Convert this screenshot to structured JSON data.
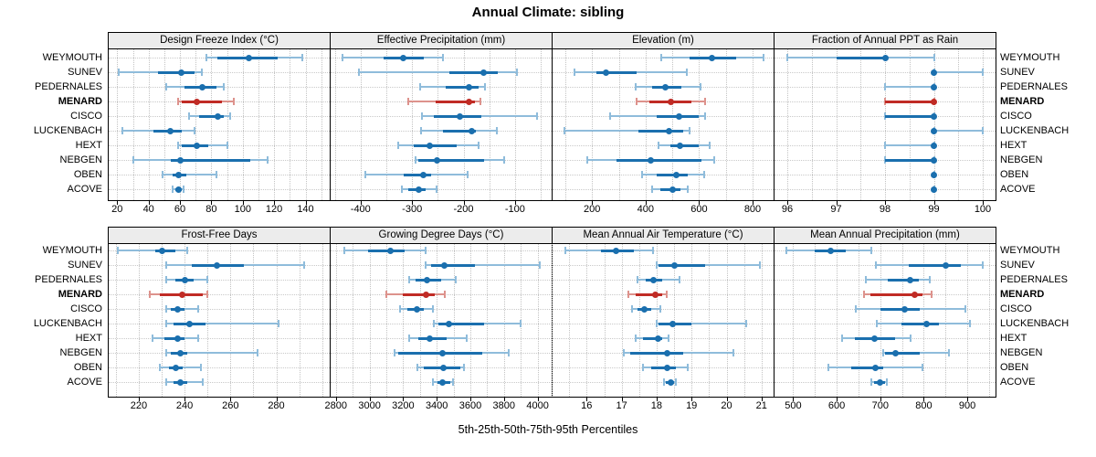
{
  "title": "Annual Climate: sibling",
  "caption": "5th-25th-50th-75th-95th Percentiles",
  "percentile_levels": [
    5,
    25,
    50,
    75,
    95
  ],
  "stations": [
    "WEYMOUTH",
    "SUNEV",
    "PEDERNALES",
    "MENARD",
    "CISCO",
    "LUCKENBACH",
    "HEXT",
    "NEBGEN",
    "OBEN",
    "ACOVE"
  ],
  "highlight_station": "MENARD",
  "colors": {
    "series": "#1a6fae",
    "series_light": "#8fbcdb",
    "highlight": "#c02b25",
    "highlight_light": "#dd928c",
    "grid": "#c8c8c8",
    "header_bg": "#ececec",
    "border": "#000000"
  },
  "chart_data": [
    {
      "type": "scatter",
      "subtype": "percentile-interval",
      "title": "Design Freeze Index (°C)",
      "grid_row": 0,
      "grid_col": 0,
      "ticks": [
        20,
        40,
        60,
        80,
        100,
        120,
        140
      ],
      "domain": [
        14,
        156
      ],
      "minor_step": 10,
      "rows": [
        [
          77,
          84,
          104,
          122,
          138
        ],
        [
          21,
          46,
          61,
          69,
          74
        ],
        [
          51,
          63,
          74,
          83,
          88
        ],
        [
          59,
          61,
          71,
          87,
          94
        ],
        [
          66,
          72,
          84,
          88,
          92
        ],
        [
          23,
          43,
          54,
          61,
          69
        ],
        [
          59,
          61,
          71,
          78,
          90
        ],
        [
          30,
          54,
          60,
          105,
          116
        ],
        [
          49,
          55,
          59,
          64,
          83
        ],
        [
          55,
          57,
          59,
          61,
          62
        ]
      ]
    },
    {
      "type": "scatter",
      "subtype": "percentile-interval",
      "title": "Effective Precipitation (mm)",
      "grid_row": 0,
      "grid_col": 1,
      "ticks": [
        -400,
        -300,
        -200,
        -100
      ],
      "domain": [
        -460,
        -27
      ],
      "minor_step": 50,
      "rows": [
        [
          -435,
          -355,
          -317,
          -278,
          -240
        ],
        [
          -403,
          -228,
          -161,
          -133,
          -96
        ],
        [
          -284,
          -234,
          -190,
          -171,
          -158
        ],
        [
          -307,
          -254,
          -190,
          -177,
          -167
        ],
        [
          -281,
          -257,
          -208,
          -165,
          -57
        ],
        [
          -282,
          -240,
          -185,
          -176,
          -136
        ],
        [
          -327,
          -296,
          -265,
          -213,
          -171
        ],
        [
          -294,
          -288,
          -252,
          -160,
          -122
        ],
        [
          -391,
          -317,
          -279,
          -263,
          -192
        ],
        [
          -320,
          -307,
          -287,
          -273,
          -253
        ]
      ]
    },
    {
      "type": "scatter",
      "subtype": "percentile-interval",
      "title": "Elevation (m)",
      "grid_row": 0,
      "grid_col": 2,
      "ticks": [
        200,
        400,
        600,
        800
      ],
      "domain": [
        49,
        882
      ],
      "minor_step": 100,
      "rows": [
        [
          458,
          565,
          648,
          740,
          840
        ],
        [
          134,
          215,
          252,
          368,
          553
        ],
        [
          362,
          425,
          474,
          533,
          605
        ],
        [
          368,
          414,
          495,
          570,
          622
        ],
        [
          269,
          443,
          524,
          599,
          624
        ],
        [
          95,
          373,
          487,
          541,
          566
        ],
        [
          449,
          492,
          529,
          599,
          639
        ],
        [
          183,
          292,
          420,
          610,
          657
        ],
        [
          388,
          443,
          516,
          558,
          620
        ],
        [
          425,
          454,
          500,
          529,
          558
        ]
      ]
    },
    {
      "type": "scatter",
      "subtype": "percentile-interval",
      "title": "Fraction of Annual PPT as Rain",
      "grid_row": 0,
      "grid_col": 3,
      "ticks": [
        96,
        97,
        98,
        99,
        100
      ],
      "domain": [
        95.72,
        100.28
      ],
      "minor_step": 0.5,
      "rows": [
        [
          96,
          97,
          98,
          98,
          99
        ],
        [
          99,
          99,
          99,
          99,
          100
        ],
        [
          98,
          99,
          99,
          99,
          99
        ],
        [
          98,
          98,
          99,
          99,
          99
        ],
        [
          98,
          98,
          99,
          99,
          99
        ],
        [
          99,
          99,
          99,
          99,
          100
        ],
        [
          98,
          99,
          99,
          99,
          99
        ],
        [
          98,
          98,
          99,
          99,
          99
        ],
        [
          99,
          99,
          99,
          99,
          99
        ],
        [
          99,
          99,
          99,
          99,
          99
        ]
      ]
    },
    {
      "type": "scatter",
      "subtype": "percentile-interval",
      "title": "Frost-Free Days",
      "grid_row": 1,
      "grid_col": 0,
      "ticks": [
        220,
        240,
        260,
        280
      ],
      "domain": [
        206.5,
        303.7
      ],
      "minor_step": 10,
      "rows": [
        [
          211,
          227,
          230,
          236,
          241
        ],
        [
          232,
          243,
          254,
          266,
          292
        ],
        [
          232,
          236,
          240,
          244,
          250
        ],
        [
          225,
          229,
          239,
          248,
          250
        ],
        [
          232,
          234,
          237,
          240,
          246
        ],
        [
          232,
          235,
          242,
          249,
          281
        ],
        [
          226,
          231,
          237,
          240,
          246
        ],
        [
          232,
          234,
          238,
          241,
          272
        ],
        [
          229,
          233,
          236,
          239,
          247
        ],
        [
          232,
          235,
          238,
          241,
          248
        ]
      ]
    },
    {
      "type": "scatter",
      "subtype": "percentile-interval",
      "title": "Growing Degree Days (°C)",
      "grid_row": 1,
      "grid_col": 1,
      "ticks": [
        2800,
        3000,
        3200,
        3400,
        3600,
        3800,
        4000
      ],
      "domain": [
        2763,
        4089
      ],
      "minor_step": 100,
      "rows": [
        [
          2850,
          2990,
          3125,
          3210,
          3335
        ],
        [
          3335,
          3365,
          3445,
          3625,
          4015
        ],
        [
          3235,
          3275,
          3340,
          3425,
          3510
        ],
        [
          3100,
          3200,
          3335,
          3390,
          3445
        ],
        [
          3180,
          3225,
          3280,
          3325,
          3375
        ],
        [
          3380,
          3410,
          3470,
          3680,
          3900
        ],
        [
          3235,
          3290,
          3360,
          3460,
          3580
        ],
        [
          3150,
          3170,
          3435,
          3670,
          3830
        ],
        [
          3285,
          3320,
          3440,
          3540,
          3560
        ],
        [
          3375,
          3405,
          3435,
          3480,
          3495
        ]
      ]
    },
    {
      "type": "scatter",
      "subtype": "percentile-interval",
      "title": "Mean Annual Air Temperature (°C)",
      "grid_row": 1,
      "grid_col": 2,
      "ticks": [
        16,
        17,
        18,
        19,
        20,
        21
      ],
      "domain": [
        15.0,
        21.37
      ],
      "minor_step": 0.5,
      "rows": [
        [
          15.4,
          16.4,
          16.85,
          17.35,
          17.9
        ],
        [
          18.0,
          18.05,
          18.5,
          19.4,
          20.95
        ],
        [
          17.45,
          17.7,
          17.9,
          18.15,
          18.65
        ],
        [
          17.2,
          17.4,
          17.95,
          18.15,
          18.3
        ],
        [
          17.3,
          17.45,
          17.65,
          17.85,
          18.1
        ],
        [
          18.0,
          18.05,
          18.45,
          19.0,
          20.55
        ],
        [
          17.4,
          17.6,
          18.05,
          18.15,
          18.35
        ],
        [
          17.05,
          17.25,
          18.3,
          18.75,
          20.2
        ],
        [
          17.6,
          17.85,
          18.3,
          18.55,
          18.9
        ],
        [
          18.2,
          18.25,
          18.4,
          18.5,
          18.55
        ]
      ]
    },
    {
      "type": "scatter",
      "subtype": "percentile-interval",
      "title": "Mean Annual Precipitation (mm)",
      "grid_row": 1,
      "grid_col": 3,
      "ticks": [
        500,
        600,
        700,
        800,
        900
      ],
      "domain": [
        455,
        967
      ],
      "minor_step": 50,
      "rows": [
        [
          485,
          550,
          586,
          620,
          680
        ],
        [
          690,
          765,
          850,
          885,
          935
        ],
        [
          666,
          718,
          769,
          788,
          814
        ],
        [
          662,
          678,
          780,
          798,
          818
        ],
        [
          644,
          700,
          755,
          791,
          895
        ],
        [
          691,
          749,
          807,
          835,
          906
        ],
        [
          612,
          642,
          686,
          735,
          770
        ],
        [
          706,
          711,
          734,
          791,
          858
        ],
        [
          581,
          634,
          688,
          707,
          797
        ],
        [
          679,
          686,
          699,
          711,
          715
        ]
      ]
    }
  ]
}
